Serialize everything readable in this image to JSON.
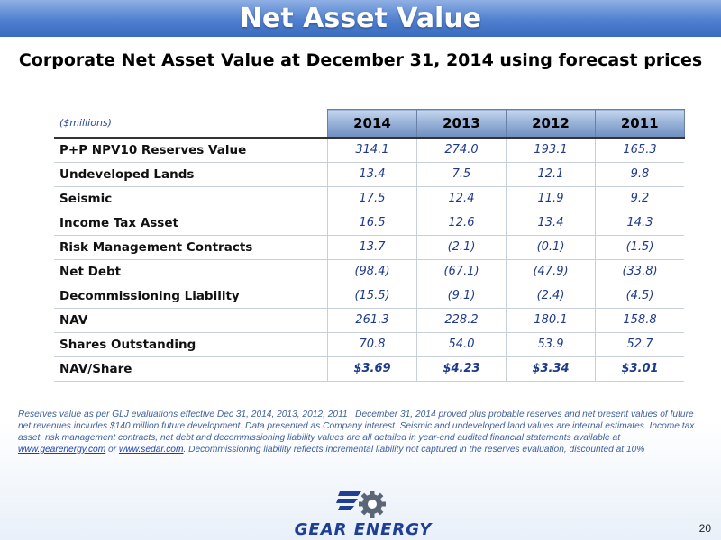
{
  "header": {
    "title": "Net Asset Value",
    "subtitle": "Corporate Net Asset Value at December 31, 2014 using forecast prices"
  },
  "table": {
    "unit_label": "($millions)",
    "years": [
      "2014",
      "2013",
      "2012",
      "2011"
    ],
    "rows": [
      {
        "label": "P+P NPV10 Reserves Value",
        "values": [
          "314.1",
          "274.0",
          "193.1",
          "165.3"
        ]
      },
      {
        "label": "Undeveloped Lands",
        "values": [
          "13.4",
          "7.5",
          "12.1",
          "9.8"
        ]
      },
      {
        "label": "Seismic",
        "values": [
          "17.5",
          "12.4",
          "11.9",
          "9.2"
        ]
      },
      {
        "label": "Income Tax Asset",
        "values": [
          "16.5",
          "12.6",
          "13.4",
          "14.3"
        ]
      },
      {
        "label": "Risk Management Contracts",
        "values": [
          "13.7",
          "(2.1)",
          "(0.1)",
          "(1.5)"
        ]
      },
      {
        "label": "Net Debt",
        "values": [
          "(98.4)",
          "(67.1)",
          "(47.9)",
          "(33.8)"
        ]
      },
      {
        "label": "Decommissioning Liability",
        "values": [
          "(15.5)",
          "(9.1)",
          "(2.4)",
          "(4.5)"
        ]
      },
      {
        "label": "NAV",
        "values": [
          "261.3",
          "228.2",
          "180.1",
          "158.8"
        ]
      },
      {
        "label": "Shares Outstanding",
        "values": [
          "70.8",
          "54.0",
          "53.9",
          "52.7"
        ]
      },
      {
        "label": "NAV/Share",
        "values": [
          "$3.69",
          "$4.23",
          "$3.34",
          "$3.01"
        ]
      }
    ]
  },
  "footnote": {
    "text_before": "Reserves value as per GLJ evaluations effective Dec 31, 2014, 2013, 2012, 2011 . December 31, 2014 proved plus probable reserves and net present values of future net revenues includes $140 million future development. Data presented as Company interest.  Seismic and undeveloped land values are internal estimates.  Income tax asset, risk management contracts, net debt and decommissioning liability values are all detailed in year-end audited financial statements available at ",
    "link1": "www.gearenergy.com",
    "text_between": " or ",
    "link2": "www.sedar.com",
    "text_after": ". Decommissioning liability reflects incremental liability not captured in the reserves evaluation, discounted at 10%"
  },
  "logo": {
    "text": "GEAR ENERGY",
    "icon": "gear-icon"
  },
  "page_number": "20",
  "colors": {
    "title_bar": "#4f7fcf",
    "value_text": "#1f3a8a",
    "footnote_text": "#3d5f9e",
    "logo_blue": "#1e3f94"
  }
}
